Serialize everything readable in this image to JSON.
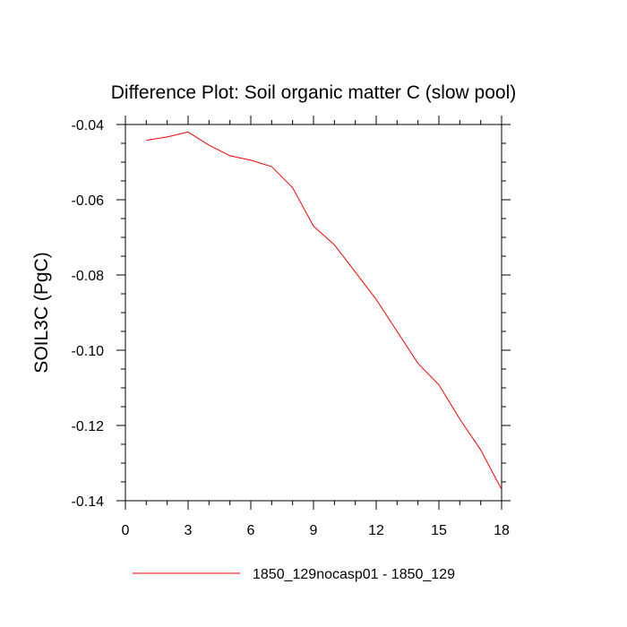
{
  "chart_data": {
    "type": "line",
    "title": "Difference Plot: Soil organic matter C (slow pool)",
    "xlabel": "",
    "ylabel": "SOIL3C  (PgC)",
    "xlim": [
      0,
      18
    ],
    "ylim": [
      -0.14,
      -0.04
    ],
    "x_ticks": [
      0,
      3,
      6,
      9,
      12,
      15,
      18
    ],
    "x_tick_labels": [
      "0",
      "3",
      "6",
      "9",
      "12",
      "15",
      "18"
    ],
    "y_ticks": [
      -0.04,
      -0.06,
      -0.08,
      -0.1,
      -0.12,
      -0.14
    ],
    "y_tick_labels": [
      "-0.04",
      "-0.06",
      "-0.08",
      "-0.10",
      "-0.12",
      "-0.14"
    ],
    "grid": false,
    "legend_position": "bottom",
    "series": [
      {
        "name": "1850_129nocasp01 - 1850_129",
        "color": "#ff0000",
        "x": [
          1,
          2,
          3,
          4,
          5,
          6,
          7,
          8,
          9,
          10,
          11,
          12,
          13,
          14,
          15,
          16,
          17,
          18
        ],
        "y": [
          -0.0442,
          -0.0433,
          -0.042,
          -0.0455,
          -0.0483,
          -0.0495,
          -0.0512,
          -0.0568,
          -0.067,
          -0.072,
          -0.0792,
          -0.0865,
          -0.095,
          -0.1035,
          -0.1092,
          -0.1183,
          -0.1265,
          -0.137
        ]
      }
    ]
  }
}
